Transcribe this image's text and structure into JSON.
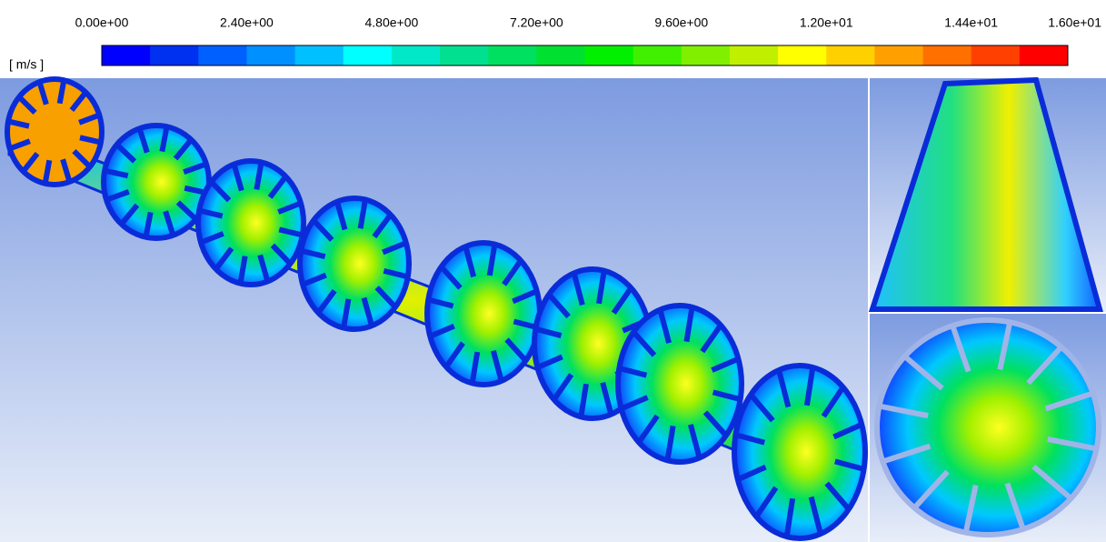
{
  "legend": {
    "unit": "[ m/s ]",
    "range": [
      0,
      16
    ],
    "ticks": [
      {
        "value": 0,
        "label": "0.00e+00"
      },
      {
        "value": 2.4,
        "label": "2.40e+00"
      },
      {
        "value": 4.8,
        "label": "4.80e+00"
      },
      {
        "value": 7.2,
        "label": "7.20e+00"
      },
      {
        "value": 9.6,
        "label": "9.60e+00"
      },
      {
        "value": 12,
        "label": "1.20e+01"
      },
      {
        "value": 14.4,
        "label": "1.44e+01"
      },
      {
        "value": 16,
        "label": "1.60e+01"
      }
    ],
    "colors": [
      "#0000ff",
      "#0030f0",
      "#0060ff",
      "#0090ff",
      "#00c0ff",
      "#00ffff",
      "#00e8c8",
      "#00e090",
      "#00e060",
      "#00e030",
      "#00f000",
      "#40f000",
      "#80f000",
      "#c0f000",
      "#ffff00",
      "#ffd000",
      "#ffa000",
      "#ff7000",
      "#ff4000",
      "#ff0000"
    ]
  }
}
